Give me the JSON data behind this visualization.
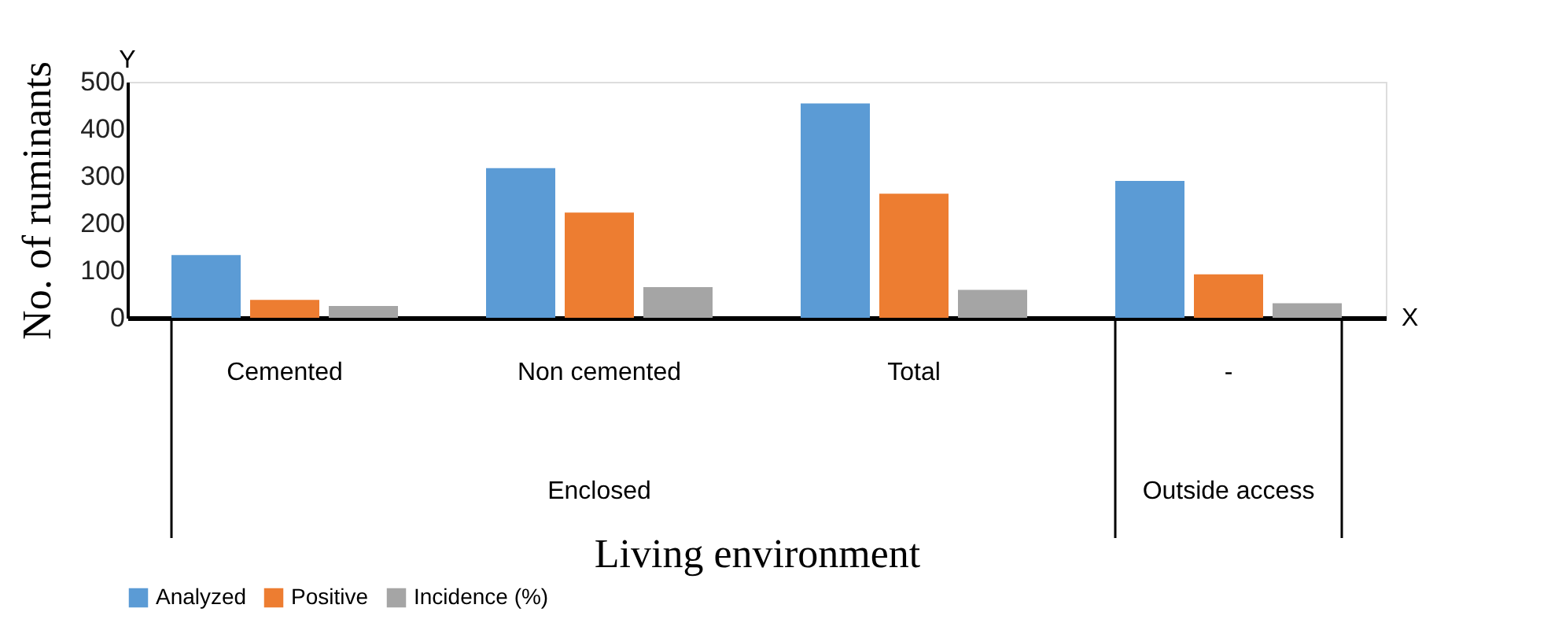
{
  "chart_data": {
    "type": "bar",
    "xlabel": "Living environment",
    "ylabel": "No. of ruminants",
    "categories": [
      "Cemented",
      "Non cemented",
      "Total",
      "-"
    ],
    "series": [
      {
        "name": "Analyzed",
        "color": "#5b9bd5",
        "values": [
          133,
          317,
          454,
          290
        ]
      },
      {
        "name": "Positive",
        "color": "#ed7d31",
        "values": [
          38,
          223,
          263,
          92
        ]
      },
      {
        "name": "Incidence (%)",
        "color": "#a5a5a5",
        "values": [
          25,
          65,
          59,
          31
        ]
      }
    ],
    "ylim": [
      0,
      500
    ],
    "yticks": [
      0,
      100,
      200,
      300,
      400,
      500
    ],
    "grid": false,
    "legend": "bottom",
    "annotations": [
      "Y",
      "X",
      "Enclosed",
      "Outside access"
    ]
  }
}
